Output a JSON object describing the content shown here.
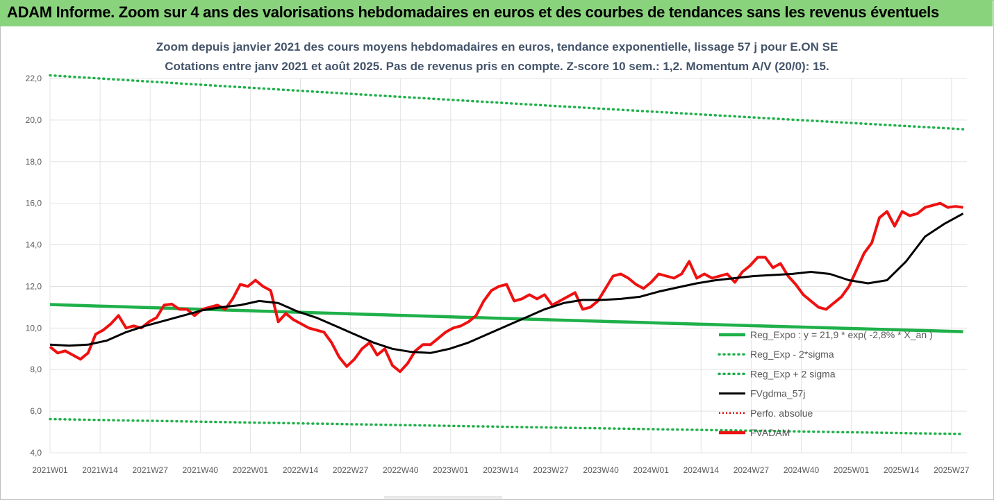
{
  "banner": {
    "title": "ADAM Informe. Zoom sur 4 ans des valorisations hebdomadaires en euros et des courbes de tendances sans les revenus éventuels"
  },
  "chart_title": {
    "line1": "Zoom depuis janvier 2021 des cours moyens hebdomadaires en euros, tendance exponentielle, lissage 57 j pour E.ON SE",
    "line2": "Cotations entre janv 2021 et août 2025.  Pas de revenus pris en compte. Z-score 10 sem.: 1,2. Momentum A/V (20/0): 15."
  },
  "colors": {
    "banner": "#8ad37d",
    "reg_expo": "#1fb04a",
    "sigma": "#1fb04a",
    "fvgdma": "#000000",
    "perfo": "#e00000",
    "fvadam": "#ee1111",
    "grid": "#e3e3e3"
  },
  "chart_data": {
    "type": "line",
    "ylim": [
      4.0,
      22.0
    ],
    "y_ticks": [
      "4,0",
      "6,0",
      "8,0",
      "10,0",
      "12,0",
      "14,0",
      "16,0",
      "18,0",
      "20,0",
      "22,0"
    ],
    "x_ticks": [
      "2021W01",
      "2021W14",
      "2021W27",
      "2021W40",
      "2022W01",
      "2022W14",
      "2022W27",
      "2022W40",
      "2023W01",
      "2023W14",
      "2023W27",
      "2023W40",
      "2024W01",
      "2024W14",
      "2024W27",
      "2024W40",
      "2025W01",
      "2025W14",
      "2025W27"
    ],
    "week_range": [
      0,
      241
    ],
    "grid": true,
    "legend_position": "bottom-right",
    "legend": [
      {
        "key": "reg_expo",
        "label": "Reg_Expo : y = 21,9 * exp( -2,8% *  X_an )"
      },
      {
        "key": "reg_minus",
        "label": "Reg_Exp - 2*sigma"
      },
      {
        "key": "reg_plus",
        "label": "Reg_Exp + 2 sigma"
      },
      {
        "key": "fvgdma",
        "label": "FVgdma_57j"
      },
      {
        "key": "perfo",
        "label": "Perfo. absolue"
      },
      {
        "key": "fvadam",
        "label": "FVADAM"
      }
    ],
    "series": [
      {
        "key": "reg_expo",
        "start_value": 11.13,
        "end_value": 9.82
      },
      {
        "key": "reg_minus",
        "start_value": 5.62,
        "end_value": 4.9
      },
      {
        "key": "reg_plus",
        "start_value": 22.15,
        "end_value": 19.55
      },
      {
        "key": "fvgdma",
        "x": [
          0,
          5,
          10,
          15,
          20,
          25,
          30,
          35,
          40,
          45,
          50,
          55,
          60,
          65,
          70,
          75,
          80,
          85,
          90,
          95,
          100,
          105,
          110,
          115,
          120,
          125,
          130,
          135,
          140,
          145,
          150,
          155,
          160,
          165,
          170,
          175,
          180,
          185,
          190,
          195,
          200,
          205,
          210,
          215,
          220,
          225,
          230,
          235,
          240
        ],
        "y": [
          9.2,
          9.15,
          9.2,
          9.4,
          9.8,
          10.1,
          10.35,
          10.6,
          10.85,
          11.0,
          11.1,
          11.3,
          11.2,
          10.8,
          10.5,
          10.1,
          9.7,
          9.3,
          9.0,
          8.85,
          8.8,
          9.0,
          9.3,
          9.7,
          10.1,
          10.5,
          10.9,
          11.2,
          11.35,
          11.35,
          11.4,
          11.5,
          11.75,
          11.95,
          12.15,
          12.3,
          12.4,
          12.5,
          12.55,
          12.6,
          12.7,
          12.6,
          12.3,
          12.15,
          12.3,
          13.2,
          14.4,
          15.0,
          15.5
        ]
      },
      {
        "key": "fvadam",
        "x": [
          0,
          2,
          4,
          6,
          8,
          10,
          12,
          14,
          16,
          18,
          20,
          22,
          24,
          26,
          28,
          30,
          32,
          34,
          36,
          38,
          40,
          42,
          44,
          46,
          48,
          50,
          52,
          54,
          56,
          58,
          60,
          62,
          64,
          66,
          68,
          70,
          72,
          74,
          76,
          78,
          80,
          82,
          84,
          86,
          88,
          90,
          92,
          94,
          96,
          98,
          100,
          102,
          104,
          106,
          108,
          110,
          112,
          114,
          116,
          118,
          120,
          122,
          124,
          126,
          128,
          130,
          132,
          134,
          136,
          138,
          140,
          142,
          144,
          146,
          148,
          150,
          152,
          154,
          156,
          158,
          160,
          162,
          164,
          166,
          168,
          170,
          172,
          174,
          176,
          178,
          180,
          182,
          184,
          186,
          188,
          190,
          192,
          194,
          196,
          198,
          200,
          202,
          204,
          206,
          208,
          210,
          212,
          214,
          216,
          218,
          220,
          222,
          224,
          226,
          228,
          230,
          232,
          234,
          236,
          238,
          240
        ],
        "y": [
          9.1,
          8.8,
          8.9,
          8.7,
          8.5,
          8.8,
          9.7,
          9.9,
          10.2,
          10.6,
          10.0,
          10.1,
          10.0,
          10.3,
          10.5,
          11.1,
          11.15,
          10.9,
          10.9,
          10.6,
          10.9,
          11.0,
          11.1,
          10.9,
          11.4,
          12.1,
          12.0,
          12.3,
          12.0,
          11.8,
          10.3,
          10.7,
          10.4,
          10.2,
          10.0,
          9.9,
          9.8,
          9.3,
          8.6,
          8.15,
          8.5,
          9.0,
          9.3,
          8.7,
          9.0,
          8.2,
          7.9,
          8.3,
          8.9,
          9.2,
          9.2,
          9.5,
          9.8,
          10.0,
          10.1,
          10.3,
          10.6,
          11.3,
          11.8,
          12.0,
          12.1,
          11.3,
          11.4,
          11.6,
          11.4,
          11.6,
          11.1,
          11.3,
          11.5,
          11.7,
          10.9,
          11.0,
          11.3,
          11.9,
          12.5,
          12.6,
          12.4,
          12.1,
          11.9,
          12.2,
          12.6,
          12.5,
          12.4,
          12.6,
          13.2,
          12.4,
          12.6,
          12.4,
          12.5,
          12.6,
          12.2,
          12.7,
          13.0,
          13.4,
          13.4,
          12.9,
          13.1,
          12.5,
          12.1,
          11.6,
          11.3,
          11.0,
          10.9,
          11.2,
          11.5,
          12.0,
          12.8,
          13.6,
          14.1,
          15.3,
          15.6,
          14.9,
          15.6,
          15.4,
          15.5,
          15.8,
          15.9,
          16.0,
          15.8,
          15.85,
          15.8
        ]
      }
    ]
  }
}
